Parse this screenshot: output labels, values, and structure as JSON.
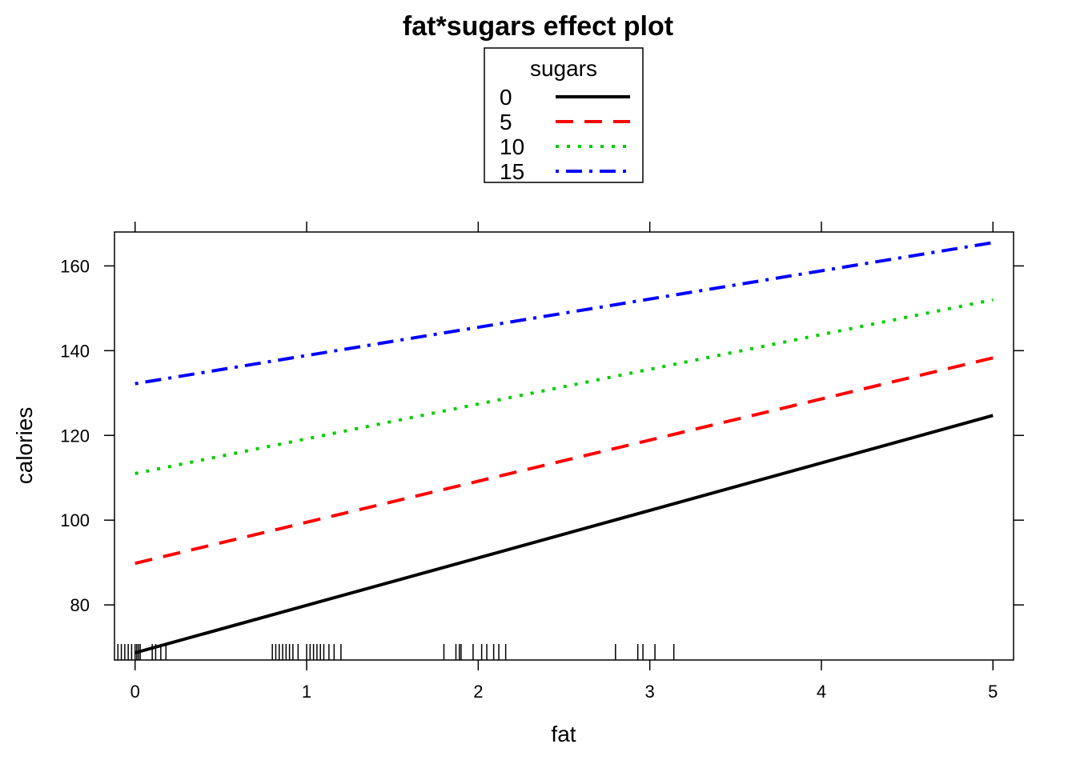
{
  "chart_data": {
    "type": "line",
    "title": "fat*sugars effect plot",
    "xlabel": "fat",
    "ylabel": "calories",
    "xlim": [
      -0.12,
      5.12
    ],
    "ylim": [
      67,
      168
    ],
    "xticks": [
      0,
      1,
      2,
      3,
      4,
      5
    ],
    "yticks": [
      80,
      100,
      120,
      140,
      160
    ],
    "grid": false,
    "legend": {
      "title": "sugars",
      "placement": "top-center"
    },
    "x": [
      0,
      5
    ],
    "series": [
      {
        "name": "0",
        "values": [
          68.7,
          124.7
        ],
        "color": "#000000",
        "dash": "solid"
      },
      {
        "name": "5",
        "values": [
          89.8,
          138.3
        ],
        "color": "#ff0000",
        "dash": "dashed"
      },
      {
        "name": "10",
        "values": [
          111.0,
          152.0
        ],
        "color": "#00cd00",
        "dash": "dotted"
      },
      {
        "name": "15",
        "values": [
          132.2,
          165.5
        ],
        "color": "#0000ff",
        "dash": "dotdash"
      }
    ],
    "rug_x": [
      -0.1,
      -0.08,
      -0.06,
      -0.04,
      -0.02,
      0,
      0.01,
      0.02,
      0.03,
      0.1,
      0.12,
      0.15,
      0.18,
      0.8,
      0.82,
      0.84,
      0.86,
      0.88,
      0.9,
      0.92,
      0.95,
      1.0,
      1.02,
      1.04,
      1.06,
      1.08,
      1.1,
      1.13,
      1.16,
      1.2,
      1.8,
      1.87,
      1.89,
      1.9,
      1.97,
      2.02,
      2.05,
      2.09,
      2.12,
      2.16,
      2.8,
      2.93,
      2.96,
      3.03,
      3.14
    ]
  }
}
